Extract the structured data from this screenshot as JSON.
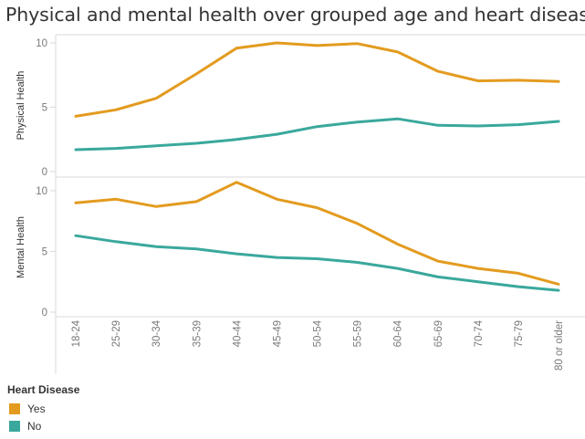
{
  "title": "Physical and mental health over grouped age and heart disease",
  "legend": {
    "title": "Heart Disease",
    "items": [
      {
        "label": "Yes",
        "color": "#E39B1F"
      },
      {
        "label": "No",
        "color": "#3AA89C"
      }
    ]
  },
  "chart_data": [
    {
      "type": "line",
      "ylabel": "Physical Health",
      "ylim": [
        0,
        10.5
      ],
      "yticks": [
        0,
        5,
        10
      ],
      "grid": false,
      "categories": [
        "18-24",
        "25-29",
        "30-34",
        "35-39",
        "40-44",
        "45-49",
        "50-54",
        "55-59",
        "60-64",
        "65-69",
        "70-74",
        "75-79",
        "80 or older"
      ],
      "series": [
        {
          "name": "Yes",
          "color": "#E39B1F",
          "values": [
            4.3,
            4.8,
            5.7,
            7.6,
            9.6,
            10.0,
            9.8,
            9.95,
            9.3,
            7.8,
            7.05,
            7.1,
            7.0
          ]
        },
        {
          "name": "No",
          "color": "#3AA89C",
          "values": [
            1.7,
            1.8,
            2.0,
            2.2,
            2.5,
            2.9,
            3.5,
            3.85,
            4.1,
            3.6,
            3.55,
            3.65,
            3.9
          ]
        }
      ]
    },
    {
      "type": "line",
      "ylabel": "Mental Health",
      "ylim": [
        0,
        10.9
      ],
      "yticks": [
        0,
        5,
        10
      ],
      "grid": false,
      "categories": [
        "18-24",
        "25-29",
        "30-34",
        "35-39",
        "40-44",
        "45-49",
        "50-54",
        "55-59",
        "60-64",
        "65-69",
        "70-74",
        "75-79",
        "80 or older"
      ],
      "series": [
        {
          "name": "Yes",
          "color": "#E39B1F",
          "values": [
            9.0,
            9.3,
            8.7,
            9.1,
            10.7,
            9.3,
            8.6,
            7.3,
            5.6,
            4.2,
            3.6,
            3.2,
            2.3
          ]
        },
        {
          "name": "No",
          "color": "#3AA89C",
          "values": [
            6.3,
            5.8,
            5.4,
            5.2,
            4.8,
            4.5,
            4.4,
            4.1,
            3.6,
            2.9,
            2.5,
            2.1,
            1.8
          ]
        }
      ]
    }
  ]
}
